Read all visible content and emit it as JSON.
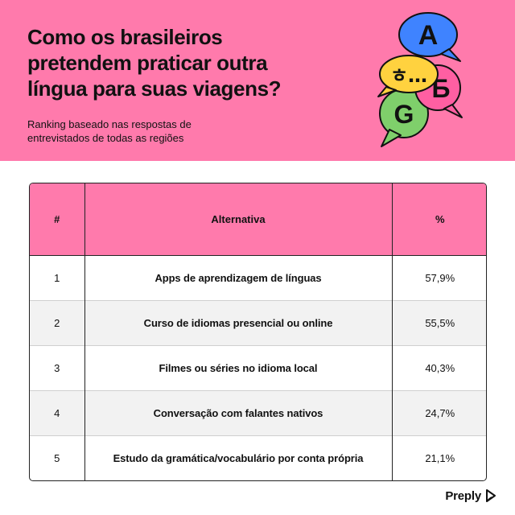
{
  "header": {
    "title": "Como os brasileiros pretendem praticar outra língua para suas viagens?",
    "subtitle": "Ranking baseado nas respostas de entrevistados de todas as regiões",
    "bubble_letters": [
      "A",
      "ㅎ…",
      "Б",
      "G"
    ]
  },
  "colors": {
    "header_bg": "#ff7aac",
    "bubble_blue": "#3f83ff",
    "bubble_yellow": "#ffd23f",
    "bubble_pink": "#ff5fa2",
    "bubble_green": "#7fcf6b"
  },
  "chart_data": {
    "type": "table",
    "columns": [
      "#",
      "Alternativa",
      "%"
    ],
    "rows": [
      [
        "1",
        "Apps de aprendizagem de línguas",
        "57,9%"
      ],
      [
        "2",
        "Curso de idiomas presencial ou online",
        "55,5%"
      ],
      [
        "3",
        "Filmes ou séries no idioma local",
        "40,3%"
      ],
      [
        "4",
        "Conversação com falantes nativos",
        "24,7%"
      ],
      [
        "5",
        "Estudo da gramática/vocabulário por conta própria",
        "21,1%"
      ]
    ]
  },
  "footer": {
    "brand": "Preply",
    "brand_icon": "preply-logo-icon"
  }
}
